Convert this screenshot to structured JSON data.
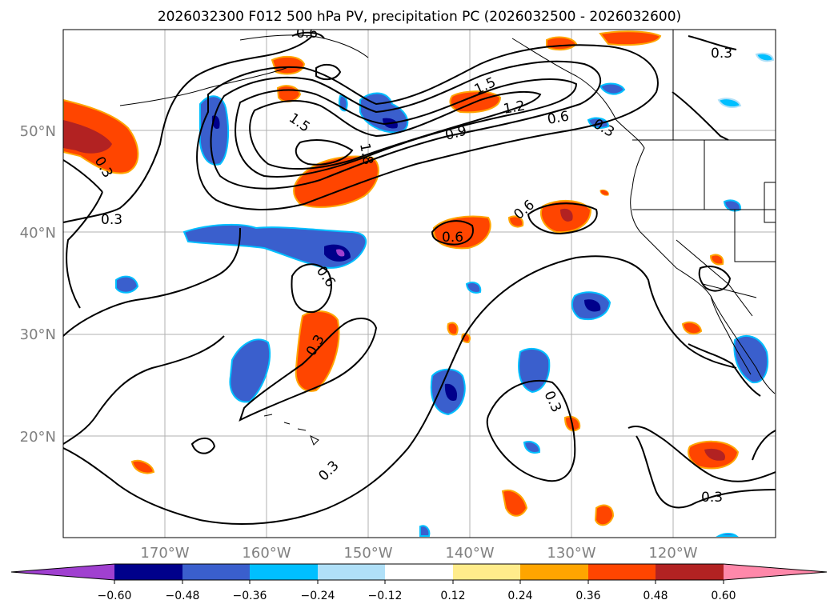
{
  "title": "2026032300 F012 500 hPa PV, precipitation PC (2026032500 - 2026032600)",
  "lat_labels": [
    "50°N",
    "40°N",
    "30°N",
    "20°N"
  ],
  "lon_labels": [
    "170°W",
    "160°W",
    "150°W",
    "140°W",
    "130°W",
    "120°W"
  ],
  "contour_labels": [
    {
      "text": "0.6"
    },
    {
      "text": "0.3"
    },
    {
      "text": "1.5"
    },
    {
      "text": "1.8"
    },
    {
      "text": "0.3"
    },
    {
      "text": "0.3"
    },
    {
      "text": "1.5"
    },
    {
      "text": "1.2"
    },
    {
      "text": "0.9"
    },
    {
      "text": "0.6"
    },
    {
      "text": "0.3"
    },
    {
      "text": "0.6"
    },
    {
      "text": "0.6"
    },
    {
      "text": "0.6"
    },
    {
      "text": "0.3"
    },
    {
      "text": "0.3"
    },
    {
      "text": "0.3"
    },
    {
      "text": "0.3"
    }
  ],
  "colorbar": {
    "ticks": [
      "−0.60",
      "−0.48",
      "−0.36",
      "−0.24",
      "−0.12",
      "0.12",
      "0.24",
      "0.36",
      "0.48",
      "0.60"
    ],
    "colors": [
      "#a040d0",
      "#00008b",
      "#3a5fcd",
      "#00bfff",
      "#b0e0f8",
      "#ffffff",
      "#ffec8b",
      "#ffa500",
      "#ff4500",
      "#b22222",
      "#ff88aa"
    ]
  }
}
